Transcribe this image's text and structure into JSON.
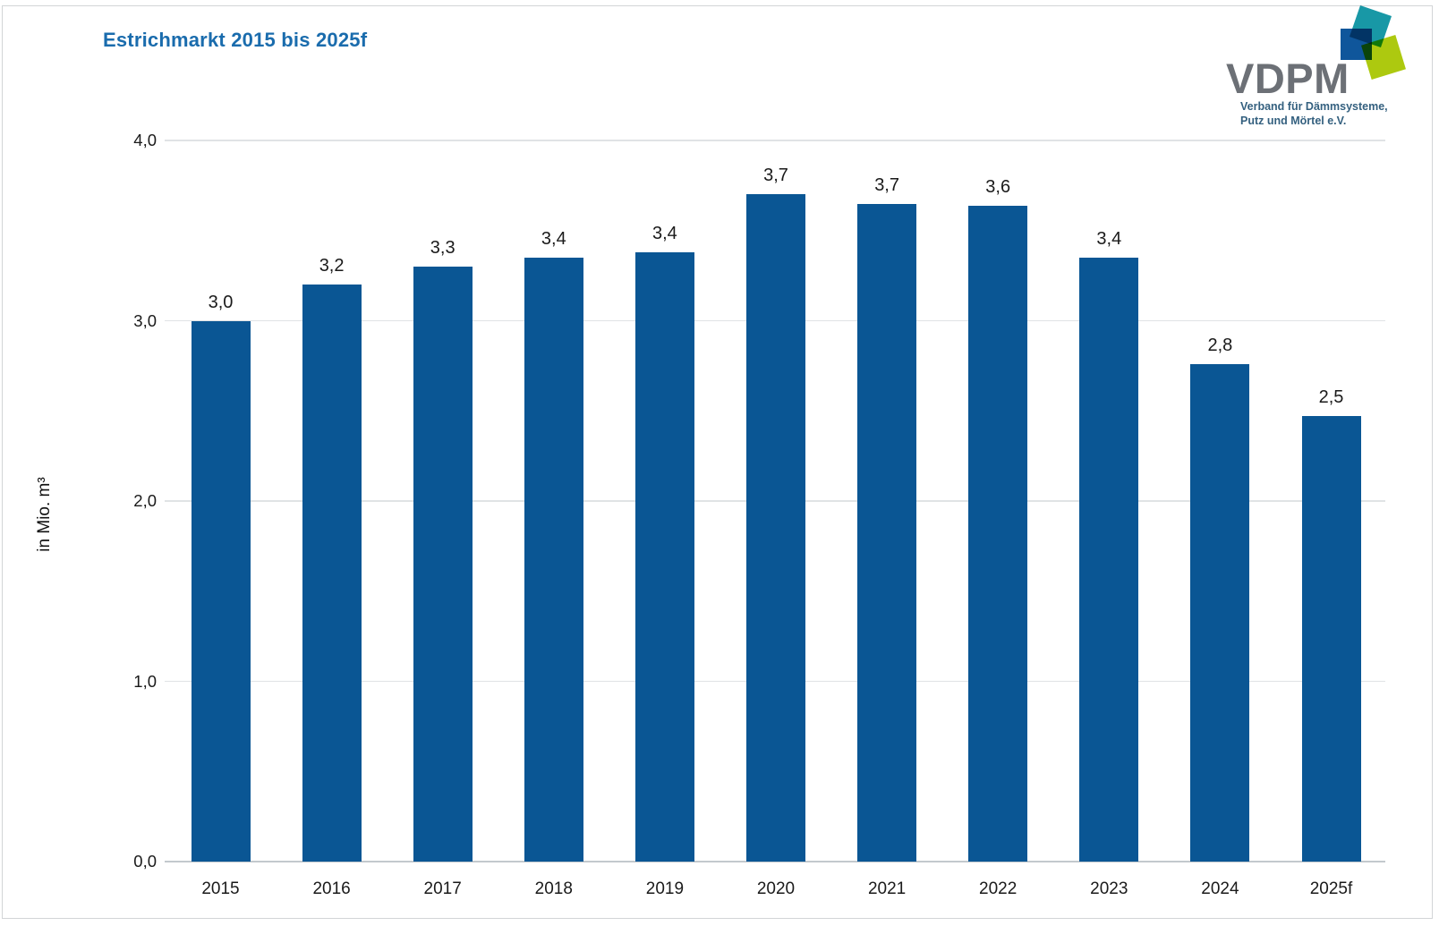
{
  "page": {
    "title": "Estrichmarkt 2015 bis 2025f"
  },
  "logo": {
    "wordmark": "VDPM",
    "tagline_line1": "Verband für Dämmsysteme,",
    "tagline_line2": "Putz und Mörtel e.V.",
    "colors": {
      "wordmark_gray": "#6c7076",
      "tagline_blue": "#34607f",
      "square_teal": "#1898a6",
      "square_blue": "#0f569b",
      "square_lime": "#adc90f"
    }
  },
  "chart_data": {
    "type": "bar",
    "title": "Estrichmarkt 2015 bis 2025f",
    "xlabel": "",
    "ylabel": "in Mio. m³",
    "categories": [
      "2015",
      "2016",
      "2017",
      "2018",
      "2019",
      "2020",
      "2021",
      "2022",
      "2023",
      "2024",
      "2025f"
    ],
    "values": [
      3.0,
      3.2,
      3.3,
      3.4,
      3.4,
      3.7,
      3.7,
      3.6,
      3.4,
      2.8,
      2.5
    ],
    "values_render": [
      3.0,
      3.2,
      3.3,
      3.35,
      3.38,
      3.7,
      3.65,
      3.64,
      3.35,
      2.76,
      2.47
    ],
    "value_labels": [
      "3,0",
      "3,2",
      "3,3",
      "3,4",
      "3,4",
      "3,7",
      "3,7",
      "3,6",
      "3,4",
      "2,8",
      "2,5"
    ],
    "ylim": [
      0,
      4
    ],
    "yticks": [
      {
        "value": 0,
        "label": "0,0"
      },
      {
        "value": 1,
        "label": "1,0"
      },
      {
        "value": 2,
        "label": "2,0"
      },
      {
        "value": 3,
        "label": "3,0"
      },
      {
        "value": 4,
        "label": "4,0"
      }
    ],
    "grid": true,
    "legend": false,
    "bar_color": "#0a5694"
  }
}
